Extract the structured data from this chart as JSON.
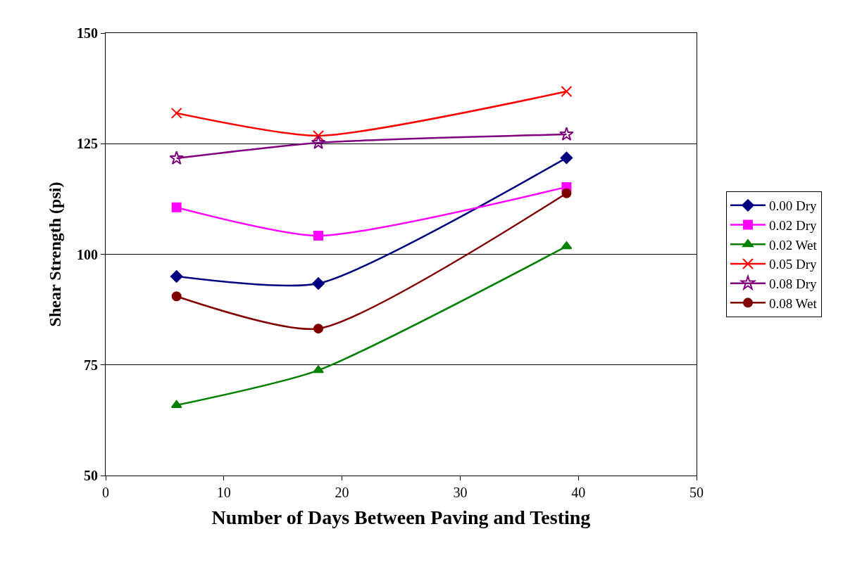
{
  "chart_data": {
    "type": "line",
    "xlabel": "Number of Days Between Paving and Testing",
    "ylabel": "Shear Strength (psi)",
    "x": [
      6,
      18,
      39
    ],
    "xlim": [
      0,
      50
    ],
    "xticks": [
      0,
      10,
      20,
      30,
      40,
      50
    ],
    "ylim": [
      50,
      150
    ],
    "yticks": [
      50,
      75,
      100,
      125,
      150
    ],
    "grid": "y",
    "legend": "right",
    "line_style": "solid",
    "series": [
      {
        "name": "0.00 Dry",
        "color": "#000080",
        "marker": "diamond",
        "values": [
          95,
          93.4,
          121.8
        ]
      },
      {
        "name": "0.02 Dry",
        "color": "#ff00ff",
        "marker": "square",
        "values": [
          110.6,
          104.2,
          115.2
        ]
      },
      {
        "name": "0.02 Wet",
        "color": "#008000",
        "marker": "triangle",
        "values": [
          65.9,
          73.8,
          101.8
        ]
      },
      {
        "name": "0.05 Dry",
        "color": "#ff0000",
        "marker": "cross",
        "values": [
          131.9,
          126.8,
          136.8
        ]
      },
      {
        "name": "0.08 Dry",
        "color": "#800080",
        "marker": "star",
        "values": [
          121.7,
          125.2,
          127.1
        ]
      },
      {
        "name": "0.08 Wet",
        "color": "#800000",
        "marker": "circle",
        "values": [
          90.5,
          83.2,
          113.8
        ]
      }
    ]
  }
}
